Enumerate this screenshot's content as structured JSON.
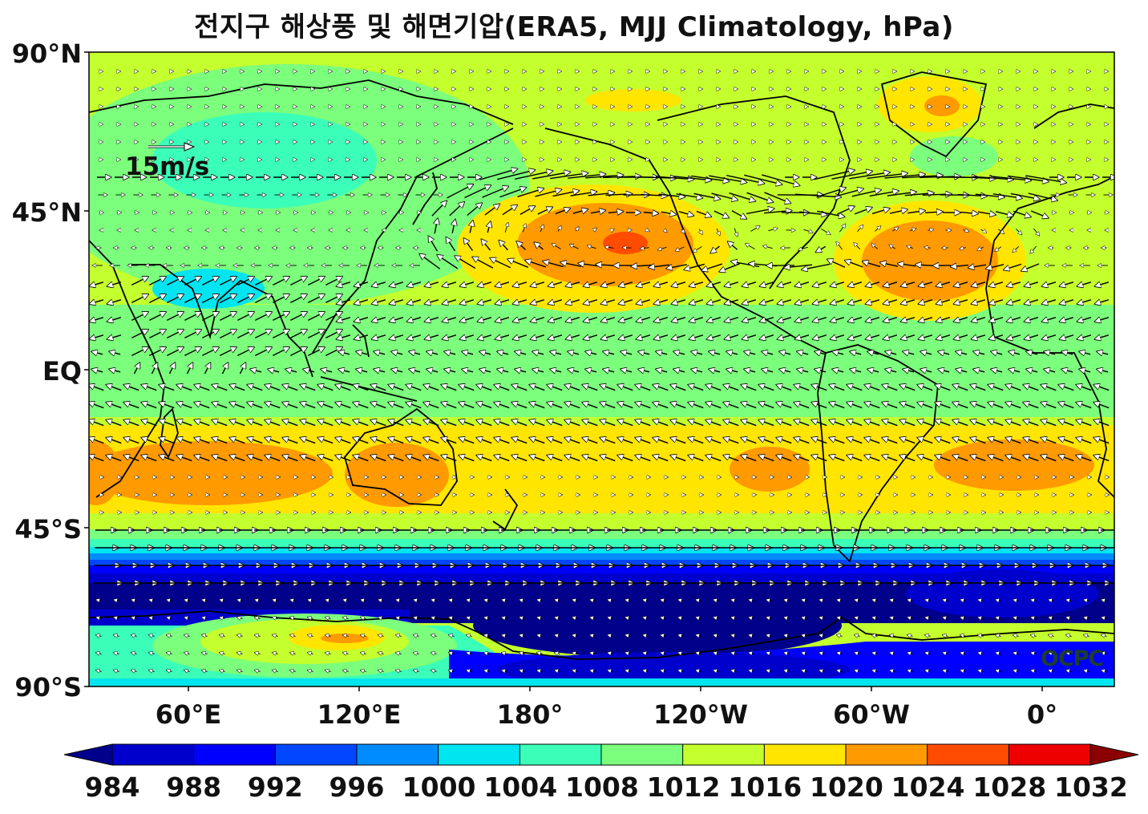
{
  "title": "전지구 해상풍 및 해면기압(ERA5, MJJ Climatology, hPa)",
  "lat_labels": [
    "90°N",
    "45°N",
    "EQ",
    "45°S",
    "90°S"
  ],
  "lon_labels": [
    "60°E",
    "120°E",
    "180°",
    "120°W",
    "60°W",
    "0°"
  ],
  "colorbar": {
    "ticks": [
      "984",
      "988",
      "992",
      "996",
      "1000",
      "1004",
      "1008",
      "1012",
      "1016",
      "1020",
      "1024",
      "1028",
      "1032"
    ],
    "colors": [
      "#00008b",
      "#0000cd",
      "#0000ff",
      "#0047ff",
      "#008cff",
      "#00e5ef",
      "#3bffb8",
      "#7cff7c",
      "#c4ff2e",
      "#ffe500",
      "#ff9a00",
      "#ff4c00",
      "#ee0000",
      "#8b0000"
    ]
  },
  "wind_scale": {
    "label": "15m/s"
  },
  "watermark": "OCPC"
}
